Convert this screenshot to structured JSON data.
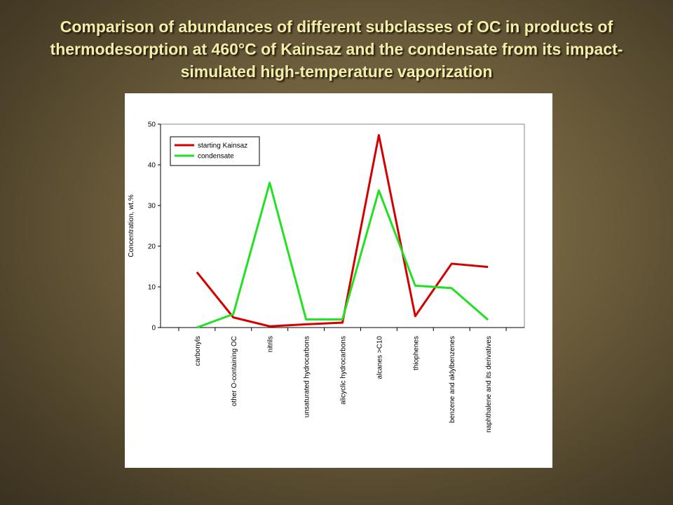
{
  "chart_data": {
    "type": "line",
    "title": "Comparison of abundances of different subclasses of OC in products of thermodesorption at 460°C of Kainsaz and the condensate from its impact-simulated high-temperature vaporization",
    "y_label": "Concentration, wt.%",
    "categories": [
      "carbonyls",
      "other O-containing OC",
      "nitrils",
      "unsaturated hydrocarbons",
      "alicyclic hydrocarbons",
      "alcanes >C10",
      "thiophenes",
      "benzene and aklylbenzenes",
      "naphthalene and its derivatives"
    ],
    "series": [
      {
        "name": "starting Kainsaz",
        "color": "#d40000",
        "values": [
          13.6,
          2.5,
          0.3,
          0.8,
          1.2,
          47.3,
          2.8,
          15.7,
          14.9
        ]
      },
      {
        "name": "condensate",
        "color": "#22e022",
        "values": [
          0,
          3.3,
          35.6,
          2.0,
          2.0,
          33.7,
          10.3,
          9.7,
          1.9
        ]
      }
    ],
    "ylim": [
      0,
      50
    ],
    "yticks": [
      0,
      10,
      20,
      30,
      40,
      50
    ],
    "legend": "upper left"
  }
}
